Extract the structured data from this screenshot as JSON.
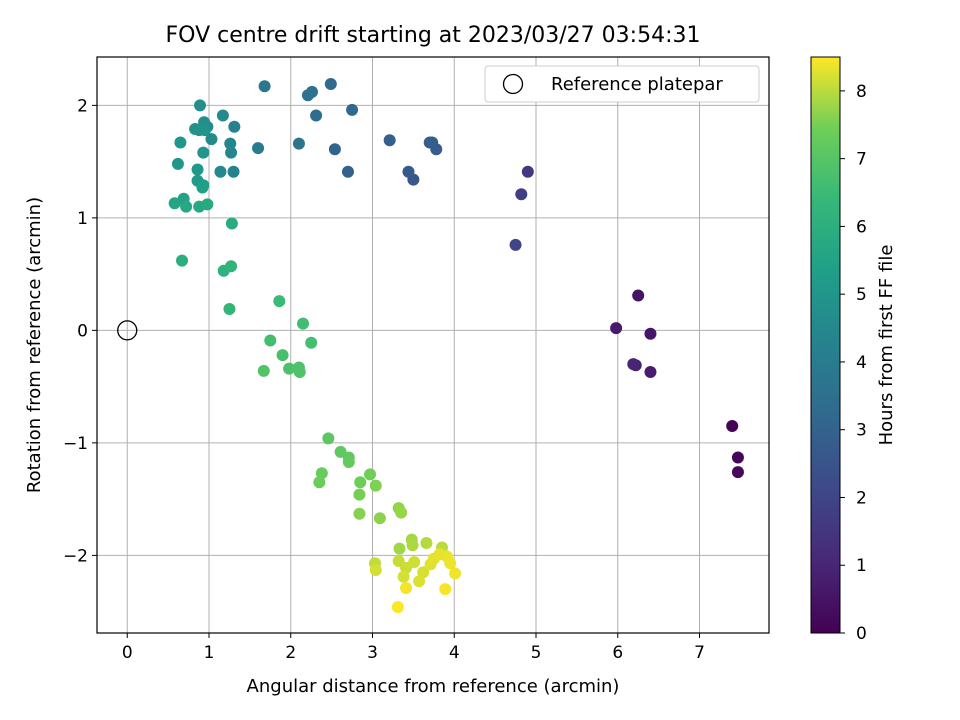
{
  "chart_data": {
    "type": "scatter",
    "title": "FOV centre drift starting at 2023/03/27 03:54:31",
    "xlabel": "Angular distance from reference (arcmin)",
    "ylabel": "Rotation from reference (arcmin)",
    "xlim": [
      -0.37,
      7.85
    ],
    "ylim": [
      -2.69,
      2.43
    ],
    "xticks": [
      0,
      1,
      2,
      3,
      4,
      5,
      6,
      7
    ],
    "yticks": [
      -2,
      -1,
      0,
      1,
      2
    ],
    "grid": true,
    "legend": {
      "position": "top-right",
      "entries": [
        "Reference platepar"
      ]
    },
    "reference_point": {
      "x": 0,
      "y": 0
    },
    "colorbar": {
      "label": "Hours from first FF file",
      "colormap": "viridis",
      "range": [
        0,
        8.5
      ],
      "ticks": [
        0,
        1,
        2,
        3,
        4,
        5,
        6,
        7,
        8
      ]
    },
    "series": [
      {
        "points": [
          [
            7.4,
            -0.85,
            0.1
          ],
          [
            7.47,
            -1.13,
            0.15
          ],
          [
            7.47,
            -1.26,
            0.2
          ],
          [
            6.25,
            0.31,
            0.5
          ],
          [
            6.4,
            -0.03,
            0.6
          ],
          [
            5.98,
            0.02,
            0.7
          ],
          [
            6.4,
            -0.37,
            0.8
          ],
          [
            6.22,
            -0.31,
            0.9
          ],
          [
            6.19,
            -0.3,
            1.0
          ],
          [
            4.9,
            1.41,
            1.6
          ],
          [
            4.82,
            1.21,
            1.8
          ],
          [
            4.75,
            0.76,
            2.0
          ],
          [
            3.5,
            1.34,
            2.6
          ],
          [
            3.44,
            1.41,
            2.7
          ],
          [
            3.78,
            1.61,
            2.75
          ],
          [
            3.7,
            1.67,
            2.8
          ],
          [
            3.73,
            1.67,
            2.85
          ],
          [
            3.21,
            1.69,
            2.9
          ],
          [
            2.7,
            1.41,
            3.0
          ],
          [
            2.54,
            1.61,
            3.1
          ],
          [
            2.75,
            1.96,
            3.2
          ],
          [
            2.49,
            2.19,
            3.3
          ],
          [
            2.31,
            1.91,
            3.4
          ],
          [
            2.26,
            2.12,
            3.5
          ],
          [
            2.21,
            2.09,
            3.6
          ],
          [
            2.1,
            1.66,
            3.7
          ],
          [
            1.68,
            2.17,
            3.8
          ],
          [
            1.6,
            1.62,
            4.0
          ],
          [
            1.31,
            1.81,
            4.2
          ],
          [
            1.3,
            1.41,
            4.3
          ],
          [
            1.26,
            1.66,
            4.4
          ],
          [
            1.27,
            1.58,
            4.45
          ],
          [
            1.14,
            1.41,
            4.5
          ],
          [
            1.17,
            1.91,
            4.55
          ],
          [
            1.03,
            1.7,
            4.6
          ],
          [
            0.98,
            1.81,
            4.65
          ],
          [
            0.94,
            1.85,
            4.7
          ],
          [
            0.89,
            2.0,
            4.75
          ],
          [
            0.83,
            1.79,
            4.8
          ],
          [
            0.88,
            1.78,
            4.85
          ],
          [
            0.95,
            1.78,
            4.9
          ],
          [
            0.93,
            1.58,
            4.95
          ],
          [
            0.65,
            1.67,
            5.0
          ],
          [
            0.62,
            1.48,
            5.05
          ],
          [
            0.86,
            1.43,
            5.1
          ],
          [
            0.86,
            1.33,
            5.2
          ],
          [
            0.93,
            1.29,
            5.3
          ],
          [
            0.92,
            1.27,
            5.4
          ],
          [
            0.69,
            1.17,
            5.5
          ],
          [
            0.58,
            1.13,
            5.6
          ],
          [
            0.72,
            1.1,
            5.7
          ],
          [
            0.88,
            1.1,
            5.75
          ],
          [
            0.98,
            1.12,
            5.8
          ],
          [
            1.28,
            0.95,
            5.9
          ],
          [
            0.67,
            0.62,
            6.0
          ],
          [
            1.18,
            0.53,
            6.1
          ],
          [
            1.27,
            0.57,
            6.2
          ],
          [
            1.25,
            0.19,
            6.3
          ],
          [
            1.86,
            0.26,
            6.5
          ],
          [
            2.15,
            0.06,
            6.6
          ],
          [
            1.75,
            -0.09,
            6.65
          ],
          [
            2.25,
            -0.11,
            6.7
          ],
          [
            1.9,
            -0.22,
            6.75
          ],
          [
            1.98,
            -0.34,
            6.8
          ],
          [
            2.1,
            -0.33,
            6.85
          ],
          [
            2.11,
            -0.37,
            6.9
          ],
          [
            1.67,
            -0.36,
            6.95
          ],
          [
            2.46,
            -0.96,
            7.1
          ],
          [
            2.61,
            -1.08,
            7.15
          ],
          [
            2.71,
            -1.13,
            7.2
          ],
          [
            2.71,
            -1.17,
            7.25
          ],
          [
            2.38,
            -1.27,
            7.3
          ],
          [
            2.35,
            -1.35,
            7.35
          ],
          [
            2.85,
            -1.35,
            7.4
          ],
          [
            2.97,
            -1.28,
            7.45
          ],
          [
            2.84,
            -1.46,
            7.5
          ],
          [
            3.04,
            -1.38,
            7.55
          ],
          [
            2.84,
            -1.63,
            7.6
          ],
          [
            3.09,
            -1.67,
            7.65
          ],
          [
            3.32,
            -1.58,
            7.7
          ],
          [
            3.35,
            -1.62,
            7.75
          ],
          [
            3.33,
            -1.94,
            7.8
          ],
          [
            3.48,
            -1.86,
            7.85
          ],
          [
            3.49,
            -1.91,
            7.9
          ],
          [
            3.66,
            -1.89,
            7.95
          ],
          [
            3.85,
            -1.93,
            8.0
          ],
          [
            3.03,
            -2.07,
            8.05
          ],
          [
            3.32,
            -2.05,
            8.1
          ],
          [
            3.41,
            -2.11,
            8.12
          ],
          [
            3.51,
            -2.06,
            8.15
          ],
          [
            3.04,
            -2.13,
            8.18
          ],
          [
            3.38,
            -2.19,
            8.2
          ],
          [
            3.62,
            -2.15,
            8.22
          ],
          [
            3.57,
            -2.23,
            8.25
          ],
          [
            3.71,
            -2.08,
            8.28
          ],
          [
            3.75,
            -2.03,
            8.3
          ],
          [
            3.82,
            -1.99,
            8.32
          ],
          [
            3.91,
            -2.01,
            8.35
          ],
          [
            3.95,
            -2.07,
            8.38
          ],
          [
            4.01,
            -2.16,
            8.4
          ],
          [
            3.41,
            -2.29,
            8.43
          ],
          [
            3.89,
            -2.3,
            8.45
          ],
          [
            3.31,
            -2.46,
            8.48
          ]
        ]
      }
    ]
  }
}
